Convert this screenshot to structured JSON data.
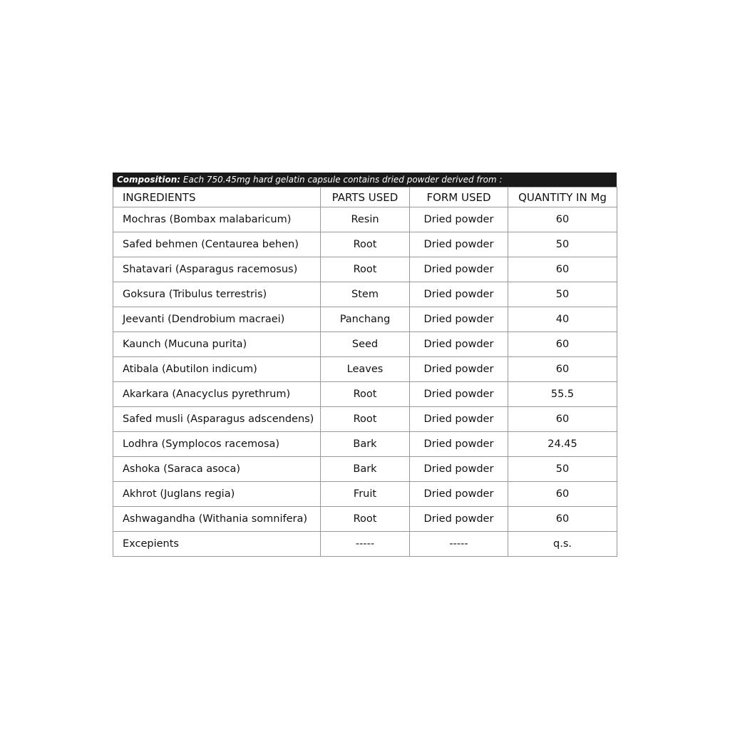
{
  "composition": {
    "label": "Composition:",
    "text": "Each 750.45mg hard gelatin capsule contains dried powder derived from :"
  },
  "headers": [
    "INGREDIENTS",
    "PARTS USED",
    "FORM USED",
    "QUANTITY IN Mg"
  ],
  "rows": [
    [
      "Mochras (Bombax malabaricum)",
      "Resin",
      "Dried powder",
      "60"
    ],
    [
      "Safed behmen (Centaurea behen)",
      "Root",
      "Dried powder",
      "50"
    ],
    [
      "Shatavari (Asparagus racemosus)",
      "Root",
      "Dried powder",
      "60"
    ],
    [
      "Goksura (Tribulus terrestris)",
      "Stem",
      "Dried powder",
      "50"
    ],
    [
      "Jeevanti (Dendrobium macraei)",
      "Panchang",
      "Dried powder",
      "40"
    ],
    [
      "Kaunch (Mucuna purita)",
      "Seed",
      "Dried powder",
      "60"
    ],
    [
      "Atibala (Abutilon indicum)",
      "Leaves",
      "Dried powder",
      "60"
    ],
    [
      "Akarkara (Anacyclus pyrethrum)",
      "Root",
      "Dried powder",
      "55.5"
    ],
    [
      "Safed musli (Asparagus adscendens)",
      "Root",
      "Dried powder",
      "60"
    ],
    [
      "Lodhra (Symplocos racemosa)",
      "Bark",
      "Dried powder",
      "24.45"
    ],
    [
      "Ashoka (Saraca asoca)",
      "Bark",
      "Dried powder",
      "50"
    ],
    [
      "Akhrot (Juglans regia)",
      "Fruit",
      "Dried powder",
      "60"
    ],
    [
      "Ashwagandha (Withania somnifera)",
      "Root",
      "Dried powder",
      "60"
    ],
    [
      "Excepients",
      "-----",
      "-----",
      "q.s."
    ]
  ]
}
